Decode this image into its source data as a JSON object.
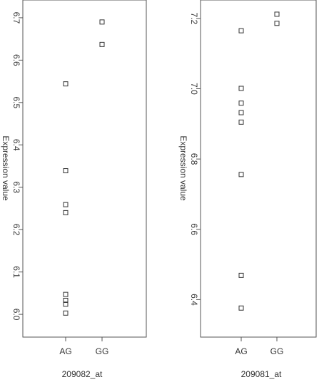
{
  "chart_data": [
    {
      "type": "scatter",
      "xlabel": "209082_at",
      "ylabel": "Expression value",
      "categories": [
        "AG",
        "GG"
      ],
      "yticks": [
        6.0,
        6.1,
        6.2,
        6.3,
        6.4,
        6.5,
        6.6,
        6.7
      ],
      "ylim": [
        5.985,
        6.715
      ],
      "points": [
        {
          "x": "AG",
          "y": 6.544
        },
        {
          "x": "AG",
          "y": 6.339
        },
        {
          "x": "AG",
          "y": 6.259
        },
        {
          "x": "AG",
          "y": 6.24
        },
        {
          "x": "AG",
          "y": 6.047
        },
        {
          "x": "AG",
          "y": 6.033
        },
        {
          "x": "AG",
          "y": 6.024
        },
        {
          "x": "AG",
          "y": 6.003
        },
        {
          "x": "GG",
          "y": 6.69
        },
        {
          "x": "GG",
          "y": 6.637
        }
      ]
    },
    {
      "type": "scatter",
      "xlabel": "209081_at",
      "ylabel": "Expression value",
      "categories": [
        "AG",
        "GG"
      ],
      "yticks": [
        6.4,
        6.6,
        6.8,
        7.0,
        7.2
      ],
      "ylim": [
        6.34,
        7.22
      ],
      "points": [
        {
          "x": "AG",
          "y": 7.165
        },
        {
          "x": "AG",
          "y": 7.001
        },
        {
          "x": "AG",
          "y": 6.959
        },
        {
          "x": "AG",
          "y": 6.932
        },
        {
          "x": "AG",
          "y": 6.905
        },
        {
          "x": "AG",
          "y": 6.756
        },
        {
          "x": "AG",
          "y": 6.469
        },
        {
          "x": "AG",
          "y": 6.376
        },
        {
          "x": "GG",
          "y": 7.212
        },
        {
          "x": "GG",
          "y": 7.186
        }
      ]
    }
  ]
}
